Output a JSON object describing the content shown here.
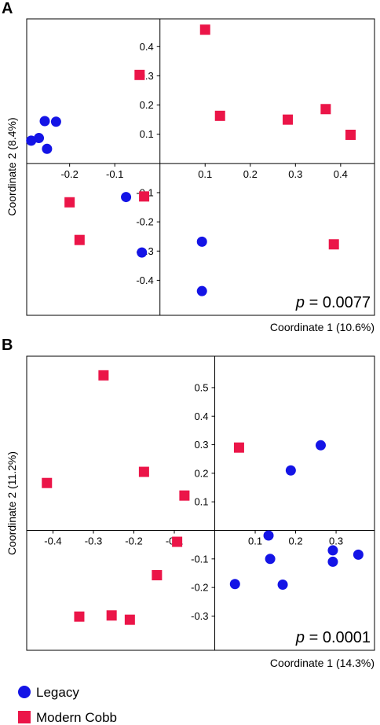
{
  "colors": {
    "legacy": "#1414e6",
    "modern": "#eb1548",
    "axis": "#000000"
  },
  "legend": [
    {
      "name": "Legacy",
      "color": "#1414e6",
      "marker": "circle"
    },
    {
      "name": "Modern Cobb",
      "color": "#eb1548",
      "marker": "square"
    }
  ],
  "chart_data": [
    {
      "type": "scatter",
      "panel": "A",
      "xlabel": "Coordinate 1 (10.6%)",
      "ylabel": "Coordinate 2 (8.4%)",
      "annotation": {
        "prefix": "p",
        "text": " = 0.0077"
      },
      "xlim": [
        -0.295,
        0.475
      ],
      "ylim": [
        -0.52,
        0.495
      ],
      "x_ticks": [
        -0.2,
        -0.1,
        0.1,
        0.2,
        0.3,
        0.4
      ],
      "y_ticks": [
        0.4,
        0.3,
        0.2,
        0.1,
        -0.1,
        -0.2,
        -0.3,
        -0.4
      ],
      "x_tick_labels": [
        "-0.2",
        "-0.1",
        "0.1",
        "0.2",
        "0.3",
        "0.4"
      ],
      "y_tick_labels": [
        "0.4",
        "0.3",
        "0.2",
        "0.1",
        "-0.1",
        "-0.2",
        "-0.3",
        "-0.4"
      ],
      "series": [
        {
          "name": "Legacy",
          "color": "#1414e6",
          "marker": "circle",
          "points": [
            [
              -0.255,
              0.145
            ],
            [
              -0.23,
              0.143
            ],
            [
              -0.268,
              0.087
            ],
            [
              -0.285,
              0.078
            ],
            [
              -0.25,
              0.05
            ],
            [
              -0.075,
              -0.115
            ],
            [
              -0.04,
              -0.305
            ],
            [
              0.093,
              -0.268
            ],
            [
              0.093,
              -0.437
            ]
          ]
        },
        {
          "name": "Modern Cobb",
          "color": "#eb1548",
          "marker": "square",
          "points": [
            [
              0.1,
              0.458
            ],
            [
              -0.045,
              0.303
            ],
            [
              0.133,
              0.163
            ],
            [
              0.283,
              0.15
            ],
            [
              0.367,
              0.186
            ],
            [
              0.422,
              0.098
            ],
            [
              -0.2,
              -0.133
            ],
            [
              -0.178,
              -0.262
            ],
            [
              -0.035,
              -0.113
            ],
            [
              0.385,
              -0.277
            ]
          ]
        }
      ]
    },
    {
      "type": "scatter",
      "panel": "B",
      "xlabel": "Coordinate 1 (14.3%)",
      "ylabel": "Coordinate 2 (11.2%)",
      "annotation": {
        "prefix": "p",
        "text": " = 0.0001"
      },
      "xlim": [
        -0.465,
        0.395
      ],
      "ylim": [
        -0.42,
        0.61
      ],
      "x_ticks": [
        -0.4,
        -0.3,
        -0.2,
        -0.1,
        0.1,
        0.2,
        0.3
      ],
      "y_ticks": [
        0.5,
        0.4,
        0.3,
        0.2,
        0.1,
        -0.1,
        -0.2,
        -0.3
      ],
      "x_tick_labels": [
        "-0.4",
        "-0.3",
        "-0.2",
        "-0.1",
        "0.1",
        "0.2",
        "0.3"
      ],
      "y_tick_labels": [
        "0.5",
        "0.4",
        "0.3",
        "0.2",
        "0.1",
        "-0.1",
        "-0.2",
        "-0.3"
      ],
      "series": [
        {
          "name": "Legacy",
          "color": "#1414e6",
          "marker": "circle",
          "points": [
            [
              0.262,
              0.298
            ],
            [
              0.188,
              0.21
            ],
            [
              0.133,
              -0.018
            ],
            [
              0.137,
              -0.1
            ],
            [
              0.292,
              -0.07
            ],
            [
              0.292,
              -0.11
            ],
            [
              0.355,
              -0.085
            ],
            [
              0.05,
              -0.188
            ],
            [
              0.168,
              -0.19
            ]
          ]
        },
        {
          "name": "Modern Cobb",
          "color": "#eb1548",
          "marker": "square",
          "points": [
            [
              -0.275,
              0.543
            ],
            [
              -0.415,
              0.166
            ],
            [
              -0.175,
              0.205
            ],
            [
              -0.075,
              0.122
            ],
            [
              0.06,
              0.29
            ],
            [
              -0.093,
              -0.04
            ],
            [
              -0.143,
              -0.157
            ],
            [
              -0.335,
              -0.302
            ],
            [
              -0.255,
              -0.298
            ],
            [
              -0.21,
              -0.313
            ]
          ]
        }
      ]
    }
  ]
}
